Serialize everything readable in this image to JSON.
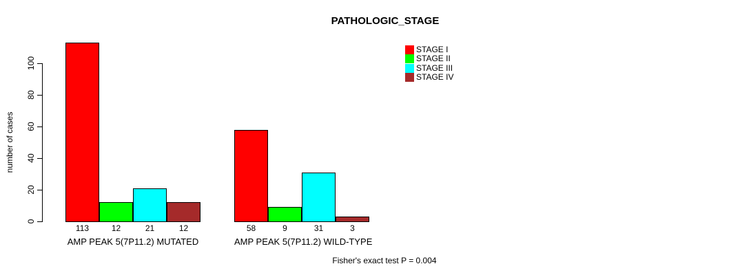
{
  "title": "PATHOLOGIC_STAGE",
  "chart_data": {
    "type": "bar",
    "title": "PATHOLOGIC_STAGE",
    "xlabel": "",
    "ylabel": "number of cases",
    "ylim": [
      0,
      113
    ],
    "yticks": [
      0,
      20,
      40,
      60,
      80,
      100
    ],
    "grid": false,
    "legend_position": "top-right",
    "categories": [
      "AMP PEAK 5(7P11.2) MUTATED",
      "AMP PEAK 5(7P11.2) WILD-TYPE"
    ],
    "series": [
      {
        "name": "STAGE I",
        "color": "#ff0000",
        "values": [
          113,
          58
        ]
      },
      {
        "name": "STAGE II",
        "color": "#00ff00",
        "values": [
          12,
          9
        ]
      },
      {
        "name": "STAGE III",
        "color": "#00ffff",
        "values": [
          21,
          31
        ]
      },
      {
        "name": "STAGE IV",
        "color": "#a52a2a",
        "values": [
          12,
          3
        ]
      }
    ],
    "bar_value_labels": [
      [
        113,
        12,
        21,
        12
      ],
      [
        58,
        9,
        31,
        3
      ]
    ],
    "footer": "Fisher's exact test P = 0.004"
  },
  "colors": {
    "axis": "#000000",
    "background": "#ffffff",
    "bar_border": "#000000"
  }
}
